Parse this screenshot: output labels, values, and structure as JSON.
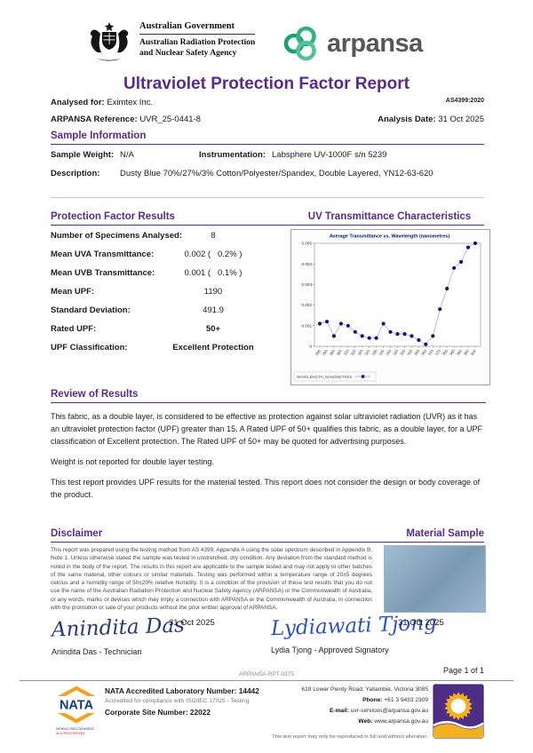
{
  "page": {
    "doc_code": "ARPANSA-RPT-0375",
    "page_number": "Page 1 of 1",
    "standard": "AS4399:2020"
  },
  "header": {
    "gov_name": "Australian Government",
    "agency_line1": "Australian Radiation Protection",
    "agency_line2": "and Nuclear Safety Agency",
    "brand": "arpansa",
    "title": "Ultraviolet Protection Factor Report"
  },
  "meta": {
    "analysed_for_label": "Analysed for:",
    "analysed_for": "Eximtex Inc.",
    "reference_label": "ARPANSA Reference:",
    "reference": "UVR_25-0441-8",
    "analysis_date_label": "Analysis Date:",
    "analysis_date": "31 Oct 2025"
  },
  "sample": {
    "heading": "Sample Information",
    "weight_label": "Sample Weight:",
    "weight": "N/A",
    "instrumentation_label": "Instrumentation:",
    "instrumentation": "Labsphere UV-1000F s/n 5239",
    "description_label": "Description:",
    "description": "Dusty Blue 70%/27%/3% Cotton/Polyester/Spandex, Double Layered, YN12-63-620"
  },
  "results": {
    "heading": "Protection Factor Results",
    "rows": [
      {
        "label": "Number of Specimens Analysed:",
        "value": "8",
        "bold": false
      },
      {
        "label": "Mean UVA Transmittance:",
        "value": "0.002 (   0.2% )",
        "bold": false
      },
      {
        "label": "Mean UVB Transmittance:",
        "value": "0.001 (   0.1% )",
        "bold": false
      },
      {
        "label": "Mean UPF:",
        "value": "1190",
        "bold": false
      },
      {
        "label": "Standard Deviation:",
        "value": "491.9",
        "bold": false
      },
      {
        "label": "Rated UPF:",
        "value": "50+",
        "bold": true
      },
      {
        "label": "UPF Classification:",
        "value": "Excellent Protection",
        "bold": true
      }
    ]
  },
  "transmittance": {
    "heading": "UV Transmittance Characteristics"
  },
  "chart_data": {
    "type": "line",
    "title": "Average Transmittance vs. Wavelength (nanometres)",
    "legend": "WAVELENGTH_NANOMETRES",
    "x": [
      290,
      295,
      300,
      305,
      310,
      315,
      320,
      325,
      330,
      335,
      340,
      345,
      350,
      355,
      360,
      365,
      370,
      375,
      380,
      385,
      390,
      395,
      400
    ],
    "values": [
      0.0011,
      0.0012,
      0.0005,
      0.0011,
      0.001,
      0.0007,
      0.0005,
      0.0004,
      0.0004,
      0.0011,
      0.0007,
      0.0006,
      0.0006,
      0.0005,
      0.0003,
      0.0001,
      0.0005,
      0.0018,
      0.0028,
      0.0038,
      0.0041,
      0.0048,
      0.005
    ],
    "ylim": [
      0,
      0.005
    ],
    "yticks": [
      "0",
      "0.001",
      "0.002",
      "0.003",
      "0.004",
      "0.005"
    ],
    "xlabel": "",
    "ylabel": "",
    "grid": false,
    "legend_position": "bottom-left",
    "marker_color": "#15157e",
    "line_color": "#9aa4c8"
  },
  "review": {
    "heading": "Review of Results",
    "paragraphs": [
      "This fabric, as a double layer, is considered to be effective as protection against solar ultraviolet radiation (UVR) as it has an ultraviolet protection factor (UPF) greater than 15. A Rated UPF of 50+ qualifies this fabric, as a double layer, for a UPF classification of Excellent protection. The Rated UPF of 50+ may be quoted for advertising purposes.",
      "Weight is not reported for double layer testing.",
      "This test report provides UPF results for the material tested. This report does not consider the design or body coverage of the product."
    ]
  },
  "disclaimer": {
    "heading": "Disclaimer",
    "text": "This report was prepared using the testing method from AS 4399, Appendix A using the solar spectrum described in Appendix B, Note 1. Unless otherwise stated the sample was tested in unstretched, dry condition. Any deviation from the standard method is noted in the body of the report. The results in this report are applicable to the sample tested and may not apply to other batches of the same material, other colours or similar materials. Testing was performed within a temperature range of 20±5 degrees celcius and a humidity range of 50±20% relative humidity. It is a condition of the provision of these test results that you do not use the name of the Australian Radiation Protection and Nuclear Safety Agency (ARPANSA) or the Commonwealth of Australia, or any words, marks or devices which may imply a connection with ARPANSA or the Commonwealth of Australia, in connection with the promotion or sale of your products without the prior written approval of ARPANSA."
  },
  "material_sample": {
    "heading": "Material Sample",
    "color": "#88abc7"
  },
  "signatures": [
    {
      "script": "Anindita Das",
      "date": "31 Oct 2025",
      "label": "Anindita Das - Technician",
      "ink": "#27397e"
    },
    {
      "script": "Lydiawati Tjong",
      "date": "31 Oct 2025",
      "label": "Lydia Tjong - Approved Signatory",
      "ink": "#2d52c4"
    }
  ],
  "footer": {
    "nata_text": "NATA",
    "nata_sub1": "WORLD RECOGNISED",
    "nata_sub2": "ACCREDITATION",
    "lab_number_line": "NATA Accredited Laboratory Number: 14442",
    "compliance_line": "Accredited for compliance with ISO/IEC 17025 - Testing",
    "site_number_line": "Corporate Site Number: 22022",
    "address": "619 Lower Plenty Road, Yallambie, Victoria 3085",
    "phone_label": "Phone:",
    "phone": "+61 3 9433 2309",
    "email_label": "E-mail:",
    "email": "uvr-services@arpansa.gov.au",
    "web_label": "Web:",
    "web": "www.arpansa.gov.au",
    "note": "This test report may only be reproduced in full and without alteration."
  },
  "colors": {
    "heading_purple": "#5a2a8c",
    "chart_marker_navy": "#15157e",
    "nata_orange": "#f4a11d",
    "nata_blue": "#123c80",
    "nata_red": "#c0272d",
    "sun_logo_purple": "#4d2e84",
    "sun_logo_gold": "#f3b01f",
    "arpansa_green": "#2aa97c"
  }
}
